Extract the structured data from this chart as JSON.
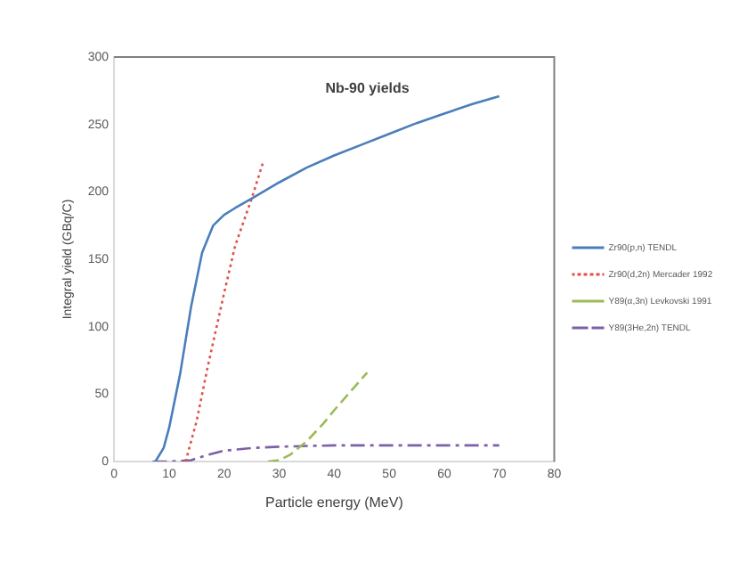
{
  "chart_data": {
    "type": "line",
    "title": "Nb-90 yields",
    "xlabel": "Particle energy (MeV)",
    "ylabel": "Integral yield (GBq/C)",
    "xlim": [
      0,
      80
    ],
    "xticks": [
      0,
      10,
      20,
      30,
      40,
      50,
      60,
      70,
      80
    ],
    "ylim": [
      0,
      300
    ],
    "yticks": [
      0,
      50,
      100,
      150,
      200,
      250,
      300
    ],
    "grid": false,
    "legend": "right",
    "marker": "none",
    "series": [
      {
        "name": "Zr90(p,n) TENDL",
        "color": "#4a7ebb",
        "line_style": "solid",
        "x": [
          7.5,
          9,
          10,
          12,
          14,
          16,
          18,
          20,
          22,
          25,
          30,
          35,
          40,
          45,
          50,
          55,
          60,
          65,
          70
        ],
        "values": [
          0,
          10,
          25,
          65,
          115,
          155,
          175,
          183,
          188,
          195,
          207,
          218,
          227,
          235,
          243,
          251,
          258,
          265,
          271
        ]
      },
      {
        "name": "Zr90(d,2n) Mercader 1992",
        "color": "#e0504a",
        "line_style": "dotted",
        "x": [
          13,
          15,
          17,
          20,
          22,
          25,
          27
        ],
        "values": [
          0,
          30,
          70,
          125,
          160,
          195,
          221
        ]
      },
      {
        "name": "Y89(α,3n) Levkovski 1991",
        "color": "#9bbb59",
        "line_style": "dashed",
        "x": [
          28,
          30,
          32,
          35,
          38,
          40,
          43,
          46
        ],
        "values": [
          0,
          1,
          5,
          15,
          28,
          38,
          52,
          66
        ]
      },
      {
        "name": "Y89(3He,2n) TENDL",
        "color": "#7d5fa8",
        "line_style": "dashdot",
        "x": [
          7,
          10,
          14,
          17,
          20,
          25,
          30,
          40,
          50,
          60,
          70
        ],
        "values": [
          0,
          0,
          1,
          5,
          8,
          10,
          11,
          12,
          12,
          12,
          12
        ]
      }
    ]
  }
}
